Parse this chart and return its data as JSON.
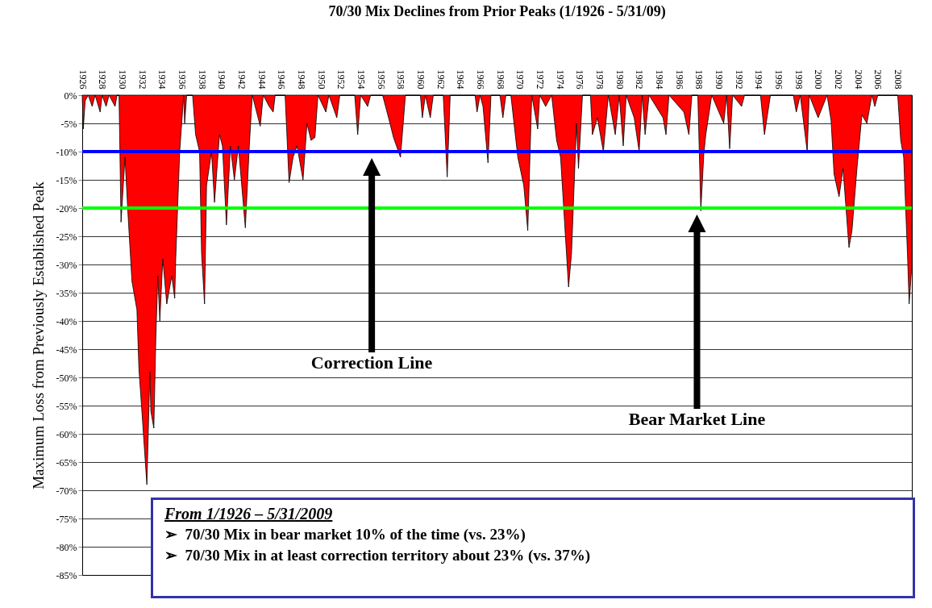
{
  "chart_data": {
    "type": "area",
    "title": "70/30 Mix Declines from Prior Peaks (1/1926 - 5/31/09)",
    "ylabel": "Maximum Loss from Previously Established Peak",
    "x": [
      1926.0,
      1926.1,
      1926.3,
      1926.6,
      1927.0,
      1927.3,
      1927.8,
      1928.0,
      1928.4,
      1928.7,
      1929.3,
      1929.5,
      1929.7,
      1929.9,
      1930.3,
      1930.6,
      1931.0,
      1931.5,
      1931.7,
      1932.0,
      1932.5,
      1932.8,
      1932.9,
      1933.2,
      1933.4,
      1933.6,
      1933.8,
      1934.1,
      1934.5,
      1935.0,
      1935.3,
      1935.4,
      1935.8,
      1936.2,
      1936.3,
      1936.5,
      1937.1,
      1937.4,
      1937.8,
      1938.0,
      1938.3,
      1938.5,
      1939.0,
      1939.3,
      1939.8,
      1940.1,
      1940.5,
      1940.9,
      1941.3,
      1941.7,
      1942.4,
      1942.8,
      1943.1,
      1943.9,
      1944.2,
      1944.8,
      1945.2,
      1945.4,
      1946.4,
      1946.8,
      1947.2,
      1947.6,
      1948.2,
      1948.6,
      1949.0,
      1949.4,
      1949.7,
      1950.5,
      1950.8,
      1951.6,
      1951.9,
      1953.4,
      1953.7,
      1954.0,
      1954.7,
      1955.0,
      1956.2,
      1956.8,
      1957.3,
      1958.0,
      1958.5,
      1960.0,
      1960.2,
      1960.5,
      1961.0,
      1961.3,
      1962.3,
      1962.7,
      1963.0,
      1965.5,
      1965.7,
      1966.0,
      1966.3,
      1966.8,
      1967.1,
      1968.0,
      1968.3,
      1968.6,
      1969.1,
      1969.8,
      1970.4,
      1970.8,
      1971.2,
      1971.8,
      1972.0,
      1972.6,
      1973.2,
      1973.7,
      1974.1,
      1974.9,
      1975.2,
      1975.7,
      1975.9,
      1976.3,
      1977.1,
      1977.3,
      1977.8,
      1978.4,
      1978.9,
      1979.6,
      1980.0,
      1980.4,
      1980.7,
      1981.5,
      1982.0,
      1982.3,
      1982.6,
      1983.0,
      1984.4,
      1984.7,
      1985.0,
      1986.5,
      1987.0,
      1987.3,
      1987.9,
      1988.2,
      1988.5,
      1988.7,
      1989.3,
      1990.5,
      1990.8,
      1991.1,
      1991.4,
      1992.3,
      1992.6,
      1994.2,
      1994.6,
      1995.2,
      1997.5,
      1997.8,
      1998.2,
      1998.9,
      1999.1,
      2000.0,
      2000.9,
      2001.3,
      2001.6,
      2002.1,
      2002.5,
      2003.1,
      2003.4,
      2003.9,
      2004.4,
      2004.9,
      2005.4,
      2005.7,
      2006.0,
      2008.0,
      2008.3,
      2008.6,
      2008.8,
      2009.0,
      2009.15,
      2009.42
    ],
    "series": [
      {
        "color": "#ff0000",
        "values": [
          0,
          -6,
          -1,
          0,
          -2,
          0,
          -3,
          0,
          -2,
          0,
          -2,
          0,
          0,
          -22.5,
          -11,
          -21,
          -33,
          -38,
          -48.5,
          -56,
          -69,
          -49,
          -56,
          -59,
          -43,
          -32,
          -40,
          -29,
          -37,
          -32,
          -36,
          -29,
          -10,
          0,
          -5,
          0,
          0,
          -7,
          -10,
          -28,
          -37,
          -16,
          -10,
          -19,
          -7,
          -9,
          -23,
          -9,
          -15,
          -9,
          -23.5,
          -9,
          0,
          -5.5,
          0,
          -2,
          -3,
          0,
          0,
          -15.5,
          -11,
          -9,
          -15,
          -5,
          -8,
          -7.5,
          0,
          -3,
          0,
          -4,
          0,
          0,
          -7,
          0,
          -2,
          0,
          0,
          -4,
          -7.5,
          -11,
          0,
          0,
          -4,
          0,
          -4,
          0,
          0,
          -14.5,
          0,
          0,
          -3,
          0,
          -2,
          -12,
          0,
          0,
          -4,
          0,
          0,
          -11,
          -16,
          -24,
          0,
          -6,
          0,
          -2,
          0,
          -8,
          -11,
          -34,
          -28,
          -5,
          -13,
          0,
          0,
          -7,
          -4,
          -10,
          0,
          -7,
          0,
          -9,
          0,
          -4,
          -10,
          0,
          -7,
          0,
          -4,
          -7,
          0,
          -3,
          -7,
          0,
          0,
          -20.5,
          -10.5,
          -7,
          0,
          -5,
          0,
          -9.5,
          0,
          -2,
          0,
          0,
          -7,
          0,
          0,
          -3,
          0,
          -10,
          0,
          -4,
          0,
          -4.5,
          -14,
          -18,
          -13,
          -27,
          -24,
          -13,
          -3.5,
          -5,
          0,
          -2,
          0,
          0,
          -8,
          -11,
          -20,
          -29,
          -37,
          -30
        ]
      }
    ],
    "xlim": [
      1926,
      2009.42
    ],
    "xticks": [
      1926,
      1928,
      1930,
      1932,
      1934,
      1936,
      1938,
      1940,
      1942,
      1944,
      1946,
      1948,
      1950,
      1952,
      1954,
      1956,
      1958,
      1960,
      1962,
      1964,
      1966,
      1968,
      1970,
      1972,
      1974,
      1976,
      1978,
      1980,
      1982,
      1984,
      1986,
      1988,
      1990,
      1992,
      1994,
      1996,
      1998,
      2000,
      2002,
      2004,
      2006,
      2008
    ],
    "ylim": [
      -85,
      0
    ],
    "yticks": [
      {
        "value": 0,
        "label": "0%"
      },
      {
        "value": -5,
        "label": "-5%"
      },
      {
        "value": -10,
        "label": "-10%"
      },
      {
        "value": -15,
        "label": "-15%"
      },
      {
        "value": -20,
        "label": "-20%"
      },
      {
        "value": -25,
        "label": "-25%"
      },
      {
        "value": -30,
        "label": "-30%"
      },
      {
        "value": -35,
        "label": "-35%"
      },
      {
        "value": -40,
        "label": "-40%"
      },
      {
        "value": -45,
        "label": "-45%"
      },
      {
        "value": -50,
        "label": "-50%"
      },
      {
        "value": -55,
        "label": "-55%"
      },
      {
        "value": -60,
        "label": "-60%"
      },
      {
        "value": -65,
        "label": "-65%"
      },
      {
        "value": -70,
        "label": "-70%"
      },
      {
        "value": -75,
        "label": "-75%"
      },
      {
        "value": -80,
        "label": "-80%"
      },
      {
        "value": -85,
        "label": "-85%"
      }
    ],
    "grid": "y",
    "ref_lines": [
      {
        "axis": "y",
        "value": -10,
        "color": "#0000ff"
      },
      {
        "axis": "y",
        "value": -20,
        "color": "#00ff00"
      }
    ],
    "annotations": [
      "Correction Line",
      "Bear Market Line",
      "From 1/1926 – 5/31/2009",
      "➢  70/30 Mix in bear market 10% of the time (vs. 23%)",
      "➢  70/30 Mix in at least correction territory about 23% (vs. 37%)"
    ]
  }
}
